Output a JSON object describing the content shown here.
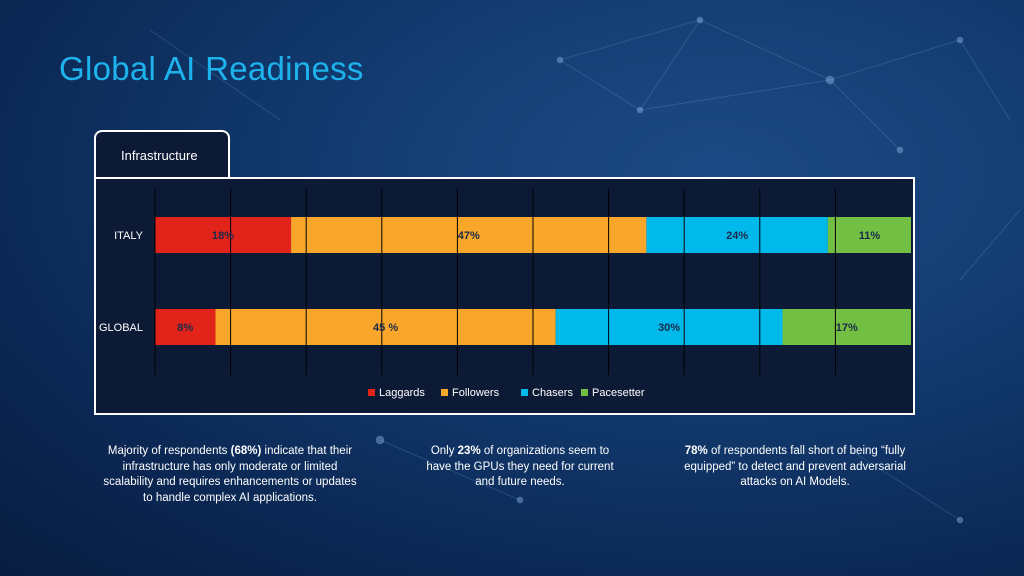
{
  "title": "Global AI Readiness",
  "tab_label": "Infrastructure",
  "chart_data": {
    "type": "bar",
    "orientation": "horizontal",
    "stacked": true,
    "categories": [
      "ITALY",
      "GLOBAL"
    ],
    "series": [
      {
        "name": "Laggards",
        "color": "#e2231a",
        "values": [
          18,
          8
        ],
        "labels": [
          "18%",
          "8%"
        ]
      },
      {
        "name": "Followers",
        "color": "#f9a72b",
        "values": [
          47,
          45
        ],
        "labels": [
          "47%",
          "45 %"
        ]
      },
      {
        "name": "Chasers",
        "color": "#00b9eb",
        "values": [
          24,
          30
        ],
        "labels": [
          "24%",
          "30%"
        ]
      },
      {
        "name": "Pacesetter",
        "color": "#72bf44",
        "values": [
          11,
          17
        ],
        "labels": [
          "11%",
          "17%"
        ]
      }
    ],
    "xlim": [
      0,
      100
    ],
    "grid": true,
    "legend": "bottom-center"
  },
  "notes": [
    [
      {
        "t": "Majority of respondents "
      },
      {
        "t": "(68%)",
        "b": true
      },
      {
        "t": " indicate that their infrastructure has only moderate or limited scalability and requires enhancements or updates to handle complex AI applications."
      }
    ],
    [
      {
        "t": "Only "
      },
      {
        "t": "23%",
        "b": true
      },
      {
        "t": " of organizations seem to have the GPUs they need for current and future needs."
      }
    ],
    [
      {
        "t": "78%",
        "b": true
      },
      {
        "t": " of respondents fall short of being “fully equipped” to detect and prevent adversarial attacks on AI Models."
      }
    ]
  ]
}
